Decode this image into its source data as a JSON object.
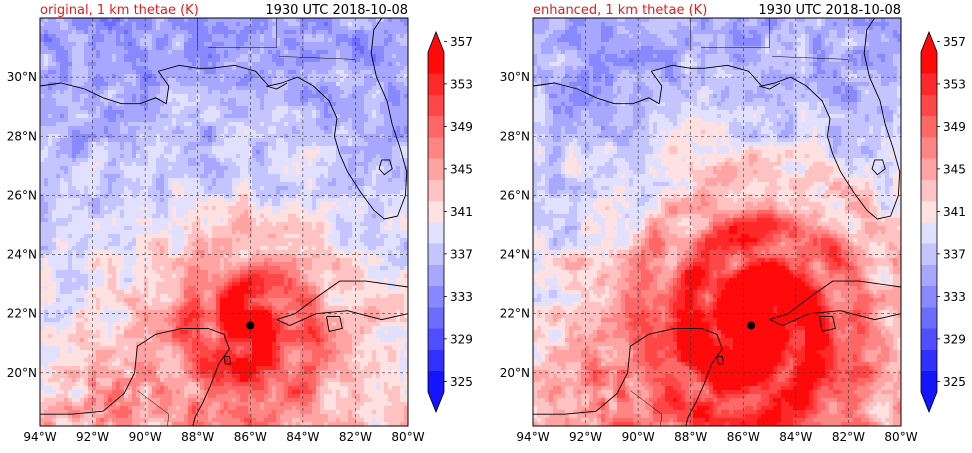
{
  "chart_data": [
    {
      "type": "heatmap",
      "title": "original, 1 km thetae (K)",
      "subtitle": "1930 UTC 2018-10-08",
      "xlabel": "",
      "ylabel": "",
      "x_ticks": [
        "94°W",
        "92°W",
        "90°W",
        "88°W",
        "86°W",
        "84°W",
        "82°W",
        "80°W"
      ],
      "y_ticks": [
        "20°N",
        "22°N",
        "24°N",
        "26°N",
        "28°N",
        "30°N"
      ],
      "x_range": [
        -94,
        -80
      ],
      "y_range": [
        18.2,
        32.0
      ],
      "colorbar": {
        "min": 325,
        "max": 357,
        "step": 2,
        "tick_labels": [
          "325",
          "329",
          "333",
          "337",
          "341",
          "345",
          "349",
          "353",
          "357"
        ],
        "extend": "both"
      },
      "marker": {
        "lon": -86.0,
        "lat": 21.6
      },
      "field": {
        "background": 339.5,
        "storm_peak": 18,
        "storm_radius_deg": 2.4,
        "core_radius_deg": 0.45
      }
    },
    {
      "type": "heatmap",
      "title": "enhanced, 1 km thetae (K)",
      "subtitle": "1930 UTC 2018-10-08",
      "xlabel": "",
      "ylabel": "",
      "x_ticks": [
        "94°W",
        "92°W",
        "90°W",
        "88°W",
        "86°W",
        "84°W",
        "82°W",
        "80°W"
      ],
      "y_ticks": [
        "20°N",
        "22°N",
        "24°N",
        "26°N",
        "28°N",
        "30°N"
      ],
      "x_range": [
        -94,
        -80
      ],
      "y_range": [
        18.2,
        32.0
      ],
      "colorbar": {
        "min": 325,
        "max": 357,
        "step": 2,
        "tick_labels": [
          "325",
          "329",
          "333",
          "337",
          "341",
          "345",
          "349",
          "353",
          "357"
        ],
        "extend": "both"
      },
      "marker": {
        "lon": -85.7,
        "lat": 21.6
      },
      "field": {
        "background": 340.0,
        "storm_peak": 24,
        "storm_radius_deg": 3.0,
        "core_radius_deg": 0.55
      }
    }
  ],
  "colors": {
    "title_red": "#e8191b",
    "marker": "#000000",
    "coast": "#000000",
    "grid": "#333333"
  }
}
